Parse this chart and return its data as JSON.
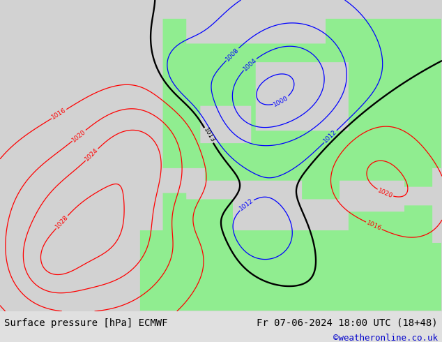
{
  "title_left": "Surface pressure [hPa] ECMWF",
  "title_right": "Fr 07-06-2024 18:00 UTC (18+48)",
  "watermark": "©weatheronline.co.uk",
  "watermark_color": "#0000cc",
  "land_color_rgb": [
    0.565,
    0.933,
    0.565
  ],
  "sea_color_rgb": [
    0.827,
    0.827,
    0.827
  ],
  "contour_color_high": "#ff0000",
  "contour_color_1013": "#000000",
  "contour_color_low": "#0000ff",
  "bottom_bar_color": "#e0e0e0",
  "text_color": "#000000",
  "font_size_bottom": 10,
  "font_size_watermark": 9,
  "xlim": [
    -45,
    50
  ],
  "ylim": [
    25,
    75
  ],
  "grid_nx": 600,
  "grid_ny": 500
}
